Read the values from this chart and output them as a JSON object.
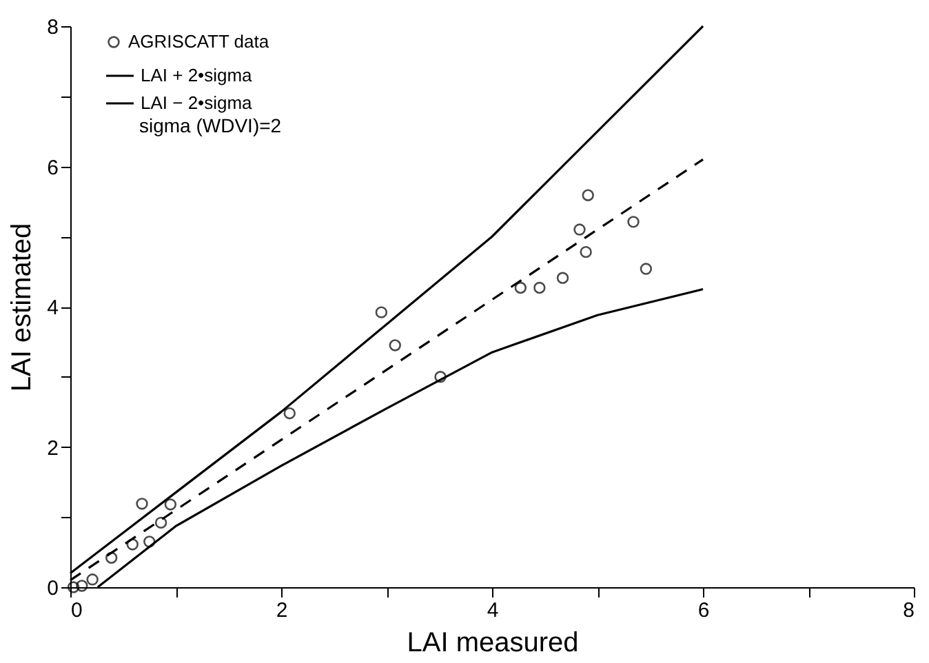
{
  "chart_data": {
    "type": "scatter",
    "xlabel": "LAI measured",
    "ylabel": "LAI estimated",
    "xlim": [
      0,
      8
    ],
    "ylim": [
      0,
      8
    ],
    "xticks": [
      0,
      {
        "value": 1,
        "label": null
      },
      2,
      {
        "value": 3,
        "label": null
      },
      4,
      {
        "value": 5,
        "label": null
      },
      6,
      {
        "value": 7,
        "label": null
      },
      8
    ],
    "yticks": [
      0,
      {
        "value": 1,
        "label": null
      },
      2,
      {
        "value": 3,
        "label": null
      },
      4,
      {
        "value": 5,
        "label": null
      },
      6,
      {
        "value": 7,
        "label": null
      },
      8
    ],
    "grid": false,
    "legend": "top left",
    "annotations": [
      "sigma (WDVI)=2"
    ],
    "series": [
      {
        "name": "AGRISCATT data",
        "marker": "circle",
        "color": "#000000",
        "x": [
          4.91,
          4.83,
          5.34,
          4.89,
          5.46,
          4.67,
          4.45,
          4.27,
          2.95,
          3.08,
          3.51,
          2.08,
          0.68,
          0.95,
          0.86,
          0.59,
          0.75,
          0.39,
          0.21,
          0.11,
          0.03
        ],
        "values": [
          5.59,
          5.1,
          5.21,
          4.78,
          4.54,
          4.41,
          4.27,
          4.27,
          3.92,
          3.45,
          3.0,
          2.48,
          1.19,
          1.18,
          0.92,
          0.61,
          0.65,
          0.42,
          0.11,
          0.02,
          0.0
        ]
      },
      {
        "name": "LAI + 2•sigma",
        "type": "line",
        "line_style": "solid",
        "color": "#000000",
        "x": [
          0,
          1,
          2,
          3,
          4,
          5,
          6
        ],
        "values": [
          0.2,
          1.35,
          2.5,
          3.75,
          5.0,
          6.5,
          8.0
        ]
      },
      {
        "name": "LAI − 2•sigma",
        "type": "line",
        "line_style": "solid",
        "color": "#000000",
        "x": [
          0.26,
          1,
          2,
          3,
          4,
          5,
          6
        ],
        "values": [
          0,
          0.87,
          1.73,
          2.55,
          3.35,
          3.88,
          4.25
        ]
      },
      {
        "type": "line",
        "line_style": "dashed",
        "color": "#000000",
        "x": [
          0,
          6
        ],
        "values": [
          0.1,
          6.1
        ]
      }
    ]
  }
}
